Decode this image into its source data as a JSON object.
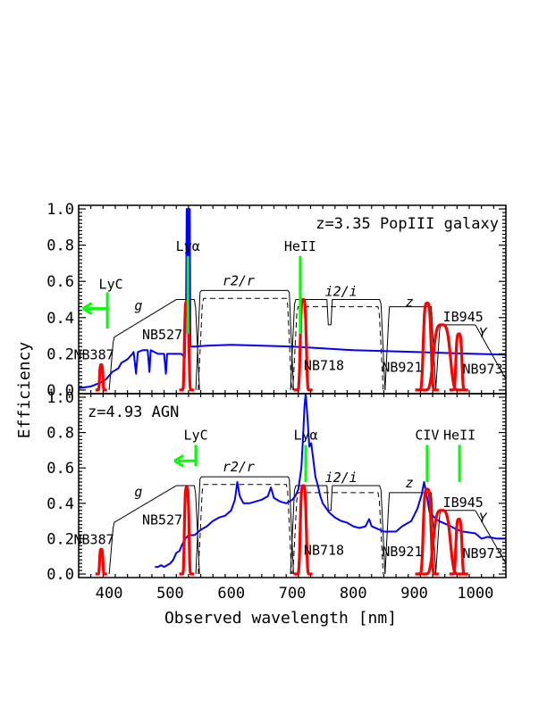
{
  "chart_data": {
    "type": "line",
    "xlabel": "Observed wavelength [nm]",
    "ylabel": "Efficiency",
    "xlim": [
      350,
      1050
    ],
    "ylim": [
      -0.02,
      1.02
    ],
    "x_ticks": [
      400,
      500,
      600,
      700,
      800,
      900,
      1000
    ],
    "y_ticks": [
      0.0,
      0.2,
      0.4,
      0.6,
      0.8,
      1.0
    ],
    "y_tick_labels": [
      "0.0",
      "0.2",
      "0.4",
      "0.6",
      "0.8",
      "1.0"
    ],
    "colors": {
      "filters": "#000000",
      "narrowband": "#ff0000",
      "spectrum": "#0000ff",
      "lines": "#00ff00"
    },
    "broadband_filters": [
      {
        "name": "g",
        "lo": 400,
        "hi": 548,
        "peak": 0.5
      },
      {
        "name": "r2/r",
        "lo": 542,
        "hi": 702,
        "peak": 0.55
      },
      {
        "name": "i2/i",
        "lo": 697,
        "hi": 852,
        "peak": 0.5
      },
      {
        "name": "z",
        "lo": 852,
        "hi": 935,
        "peak": 0.46
      },
      {
        "name": "Y",
        "lo": 935,
        "hi": 1050,
        "peak": 0.36
      }
    ],
    "narrowband_filters": [
      {
        "name": "NB387",
        "center": 387,
        "fwhm": 5.5,
        "peak": 0.14
      },
      {
        "name": "NB527",
        "center": 527,
        "fwhm": 7.5,
        "peak": 0.49
      },
      {
        "name": "NB718",
        "center": 718,
        "fwhm": 10,
        "peak": 0.5
      },
      {
        "name": "NB921",
        "center": 921,
        "fwhm": 13,
        "peak": 0.48
      },
      {
        "name": "IB945",
        "center": 945,
        "fwhm": 28,
        "peak": 0.36
      },
      {
        "name": "NB973",
        "center": 973,
        "fwhm": 10,
        "peak": 0.31
      }
    ],
    "panels": [
      {
        "title": "z=3.35 PopIII galaxy",
        "filter_labels": {
          "g": "g",
          "r": "r2/r",
          "i": "i2/i",
          "z": "z",
          "Y": "Y",
          "IB945": "IB945",
          "NB387": "NB387",
          "NB527": "NB527",
          "NB718": "NB718",
          "NB921": "NB921",
          "NB973": "NB973"
        },
        "emission_lines": [
          {
            "label": "Lyα",
            "x": 529,
            "y0": 0.31,
            "y1": 0.74
          },
          {
            "label": "HeII",
            "x": 713,
            "y0": 0.31,
            "y1": 0.74
          }
        ],
        "lyc_marker": {
          "label": "LyC",
          "x": 397,
          "y0": 0.34,
          "y1": 0.54,
          "arrow_y": 0.45,
          "arrow_to": 357
        },
        "spectrum": [
          [
            350,
            0.01
          ],
          [
            370,
            0.02
          ],
          [
            385,
            0.04
          ],
          [
            395,
            0.06
          ],
          [
            405,
            0.1
          ],
          [
            415,
            0.12
          ],
          [
            420,
            0.15
          ],
          [
            430,
            0.17
          ],
          [
            438,
            0.2
          ],
          [
            440,
            0.21
          ],
          [
            444,
            0.09
          ],
          [
            447,
            0.21
          ],
          [
            455,
            0.22
          ],
          [
            463,
            0.22
          ],
          [
            466,
            0.1
          ],
          [
            468,
            0.22
          ],
          [
            480,
            0.2
          ],
          [
            490,
            0.2
          ],
          [
            493,
            0.09
          ],
          [
            495,
            0.2
          ],
          [
            505,
            0.2
          ],
          [
            518,
            0.2
          ],
          [
            524,
            0.18
          ],
          [
            526,
            0.5
          ],
          [
            527,
            1.0
          ],
          [
            528,
            1.0
          ],
          [
            530,
            0.2
          ],
          [
            531,
            1.0
          ],
          [
            532,
            1.0
          ],
          [
            533,
            0.24
          ],
          [
            540,
            0.24
          ],
          [
            560,
            0.245
          ],
          [
            600,
            0.25
          ],
          [
            650,
            0.245
          ],
          [
            700,
            0.24
          ],
          [
            750,
            0.23
          ],
          [
            800,
            0.22
          ],
          [
            850,
            0.215
          ],
          [
            900,
            0.21
          ],
          [
            950,
            0.205
          ],
          [
            1000,
            0.2
          ],
          [
            1050,
            0.195
          ]
        ]
      },
      {
        "title": "z=4.93 AGN",
        "filter_labels": {
          "g": "g",
          "r": "r2/r",
          "i": "i2/i",
          "z": "z",
          "Y": "Y",
          "IB945": "IB945",
          "NB387": "NB387",
          "NB527": "NB527",
          "NB718": "NB718",
          "NB921": "NB921",
          "NB973": "NB973"
        },
        "emission_lines": [
          {
            "label": "LyC",
            "x": 542,
            "y0": 0.61,
            "y1": 0.73
          },
          {
            "label": "Lyα",
            "x": 722,
            "y0": 0.52,
            "y1": 0.73
          },
          {
            "label": "CIV",
            "x": 921,
            "y0": 0.52,
            "y1": 0.73
          },
          {
            "label": "HeII",
            "x": 974,
            "y0": 0.52,
            "y1": 0.73
          }
        ],
        "lyc_marker": {
          "label": "",
          "x": 542,
          "y0": 0.61,
          "y1": 0.73,
          "arrow_y": 0.64,
          "arrow_to": 507
        },
        "spectrum": [
          [
            475,
            0.04
          ],
          [
            480,
            0.04
          ],
          [
            485,
            0.05
          ],
          [
            490,
            0.04
          ],
          [
            495,
            0.05
          ],
          [
            500,
            0.06
          ],
          [
            505,
            0.08
          ],
          [
            510,
            0.12
          ],
          [
            515,
            0.13
          ],
          [
            520,
            0.17
          ],
          [
            525,
            0.2
          ],
          [
            530,
            0.22
          ],
          [
            540,
            0.22
          ],
          [
            550,
            0.25
          ],
          [
            560,
            0.27
          ],
          [
            570,
            0.3
          ],
          [
            580,
            0.32
          ],
          [
            590,
            0.33
          ],
          [
            600,
            0.36
          ],
          [
            606,
            0.42
          ],
          [
            610,
            0.52
          ],
          [
            614,
            0.44
          ],
          [
            620,
            0.4
          ],
          [
            630,
            0.4
          ],
          [
            640,
            0.41
          ],
          [
            650,
            0.42
          ],
          [
            660,
            0.44
          ],
          [
            665,
            0.49
          ],
          [
            670,
            0.43
          ],
          [
            680,
            0.41
          ],
          [
            690,
            0.4
          ],
          [
            700,
            0.42
          ],
          [
            705,
            0.44
          ],
          [
            710,
            0.48
          ],
          [
            715,
            0.6
          ],
          [
            718,
            0.8
          ],
          [
            720,
            0.95
          ],
          [
            722,
            1.02
          ],
          [
            725,
            0.88
          ],
          [
            728,
            0.72
          ],
          [
            731,
            0.74
          ],
          [
            734,
            0.66
          ],
          [
            738,
            0.55
          ],
          [
            742,
            0.5
          ],
          [
            746,
            0.44
          ],
          [
            750,
            0.4
          ],
          [
            760,
            0.35
          ],
          [
            770,
            0.32
          ],
          [
            780,
            0.3
          ],
          [
            790,
            0.29
          ],
          [
            800,
            0.27
          ],
          [
            810,
            0.26
          ],
          [
            820,
            0.27
          ],
          [
            826,
            0.31
          ],
          [
            830,
            0.27
          ],
          [
            850,
            0.24
          ],
          [
            870,
            0.24
          ],
          [
            880,
            0.27
          ],
          [
            895,
            0.3
          ],
          [
            905,
            0.37
          ],
          [
            912,
            0.45
          ],
          [
            916,
            0.52
          ],
          [
            920,
            0.45
          ],
          [
            925,
            0.35
          ],
          [
            930,
            0.33
          ],
          [
            940,
            0.3
          ],
          [
            960,
            0.27
          ],
          [
            970,
            0.25
          ],
          [
            980,
            0.24
          ],
          [
            1000,
            0.23
          ],
          [
            1010,
            0.2
          ],
          [
            1020,
            0.21
          ],
          [
            1035,
            0.2
          ],
          [
            1050,
            0.2
          ]
        ]
      }
    ]
  }
}
